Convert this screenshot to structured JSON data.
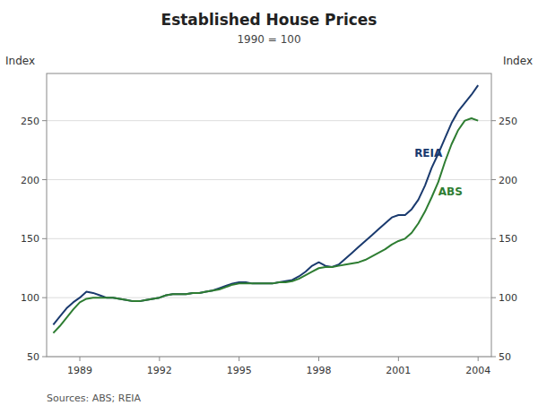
{
  "chart_data": {
    "type": "line",
    "title": "Established House Prices",
    "subtitle": "1990 = 100",
    "ylabel": "Index",
    "y2label": "Index",
    "source": "Sources: ABS; REIA",
    "xlim": [
      1987.75,
      2004.5
    ],
    "xticks": [
      1989,
      1992,
      1995,
      1998,
      2001,
      2004
    ],
    "ylim": [
      50,
      290
    ],
    "yticks": [
      50,
      100,
      150,
      200,
      250
    ],
    "y2lim": [
      50,
      290
    ],
    "y2ticks": [
      50,
      100,
      150,
      200,
      250
    ],
    "grid": true,
    "x": [
      1988.0,
      1988.25,
      1988.5,
      1988.75,
      1989.0,
      1989.25,
      1989.5,
      1989.75,
      1990.0,
      1990.25,
      1990.5,
      1990.75,
      1991.0,
      1991.25,
      1991.5,
      1991.75,
      1992.0,
      1992.25,
      1992.5,
      1992.75,
      1993.0,
      1993.25,
      1993.5,
      1993.75,
      1994.0,
      1994.25,
      1994.5,
      1994.75,
      1995.0,
      1995.25,
      1995.5,
      1995.75,
      1996.0,
      1996.25,
      1996.5,
      1996.75,
      1997.0,
      1997.25,
      1997.5,
      1997.75,
      1998.0,
      1998.25,
      1998.5,
      1998.75,
      1999.0,
      1999.25,
      1999.5,
      1999.75,
      2000.0,
      2000.25,
      2000.5,
      2000.75,
      2001.0,
      2001.25,
      2001.5,
      2001.75,
      2002.0,
      2002.25,
      2002.5,
      2002.75,
      2003.0,
      2003.25,
      2003.5,
      2003.75,
      2004.0
    ],
    "series": [
      {
        "color": "#1a3a6e",
        "values": [
          77,
          84,
          91,
          96,
          100,
          105,
          104,
          102,
          100,
          100,
          99,
          98,
          97,
          97,
          98,
          99,
          100,
          102,
          103,
          103,
          103,
          104,
          104,
          105,
          106,
          108,
          110,
          112,
          113,
          113,
          112,
          112,
          112,
          112,
          113,
          114,
          115,
          118,
          122,
          127,
          130,
          127,
          126,
          128,
          133,
          138,
          143,
          148,
          153,
          158,
          163,
          168,
          170,
          170,
          175,
          183,
          195,
          210,
          222,
          235,
          248,
          258,
          265,
          272,
          280
        ]
      },
      {
        "color": "#2e7d32",
        "values": [
          70,
          76,
          83,
          90,
          96,
          99,
          100,
          100,
          100,
          100,
          99,
          98,
          97,
          97,
          98,
          99,
          100,
          102,
          103,
          103,
          103,
          104,
          104,
          105,
          106,
          107,
          109,
          111,
          112,
          112,
          112,
          112,
          112,
          112,
          113,
          113,
          114,
          116,
          119,
          122,
          125,
          126,
          126,
          127,
          128,
          129,
          130,
          132,
          135,
          138,
          141,
          145,
          148,
          150,
          155,
          163,
          173,
          185,
          198,
          215,
          230,
          242,
          250,
          252,
          250
        ]
      }
    ],
    "annotations": [
      {
        "text": "REIA",
        "x": 2001.6,
        "y": 218,
        "color": "#1a3a6e"
      },
      {
        "text": "ABS",
        "x": 2002.5,
        "y": 185,
        "color": "#2e7d32"
      }
    ]
  }
}
